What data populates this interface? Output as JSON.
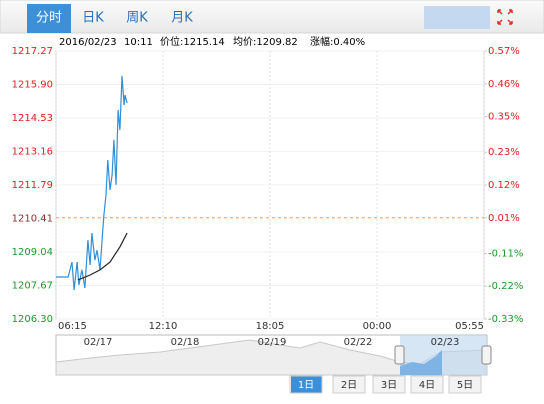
{
  "tabs": [
    "分时",
    "日K",
    "周K",
    "月K"
  ],
  "info": [
    "2016/02/23",
    "10:11",
    "价位:1215.14",
    "均价:1209.82",
    "涨幅:0.40%"
  ],
  "chart_data": {
    "type": "line",
    "xlim": [
      "06:15",
      "05:55"
    ],
    "xticks": [
      "06:15",
      "12:10",
      "18:05",
      "00:00",
      "05:55"
    ],
    "ylim": [
      1206.3,
      1217.27
    ],
    "yticks": [
      1217.27,
      {
        "value": 1215.9,
        "label": "1215.90"
      },
      1214.53,
      1213.16,
      1211.79,
      1210.41,
      1209.04,
      1207.67,
      {
        "value": 1206.3,
        "label": "1206.30"
      }
    ],
    "y2lim": [
      -0.33,
      0.57
    ],
    "y2ticks": [
      {
        "value": 0.57,
        "label": "0.57%"
      },
      {
        "value": 0.46,
        "label": "0.46%"
      },
      {
        "value": 0.35,
        "label": "0.35%"
      },
      {
        "value": 0.23,
        "label": "0.23%"
      },
      {
        "value": 0.12,
        "label": "0.12%"
      },
      {
        "value": 0.01,
        "label": "0.01%"
      },
      {
        "value": -0.11,
        "label": "-0.11%"
      },
      {
        "value": -0.22,
        "label": "-0.22%"
      },
      {
        "value": -0.33,
        "label": "-0.33%"
      }
    ],
    "grid": true,
    "series": [
      {
        "color": "#2f8fd8",
        "x": [
          "06:15",
          "06:55",
          "07:08",
          "07:15",
          "07:25",
          "07:31",
          "07:41",
          "07:51",
          "08:01",
          "08:08",
          "08:14",
          "08:24",
          "08:31",
          "08:41",
          "08:48",
          "08:54",
          "09:01",
          "09:07",
          "09:14",
          "09:21",
          "09:27",
          "09:34",
          "09:41",
          "09:47",
          "09:54",
          "10:01",
          "10:04",
          "10:11"
        ],
        "values": [
          1208.02,
          1208.02,
          1208.63,
          1207.49,
          1208.63,
          1207.69,
          1208.31,
          1207.57,
          1209.53,
          1208.51,
          1209.82,
          1208.71,
          1209.12,
          1208.31,
          1209.53,
          1210.56,
          1211.38,
          1212.81,
          1211.58,
          1212.19,
          1213.63,
          1211.79,
          1214.85,
          1214.04,
          1216.25,
          1215.06,
          1215.47,
          1215.14
        ]
      },
      {
        "color": "#222222",
        "x": [
          "07:28",
          "08:08",
          "08:41",
          "09:14",
          "09:47",
          "10:11"
        ],
        "values": [
          1207.9,
          1208.1,
          1208.31,
          1208.63,
          1209.25,
          1209.82
        ]
      }
    ]
  },
  "navigator": {
    "labels": [
      "02/17",
      "02/18",
      "02/19",
      "02/22",
      "02/23"
    ]
  },
  "range_buttons": [
    "1日",
    "2日",
    "3日",
    "4日",
    "5日"
  ]
}
